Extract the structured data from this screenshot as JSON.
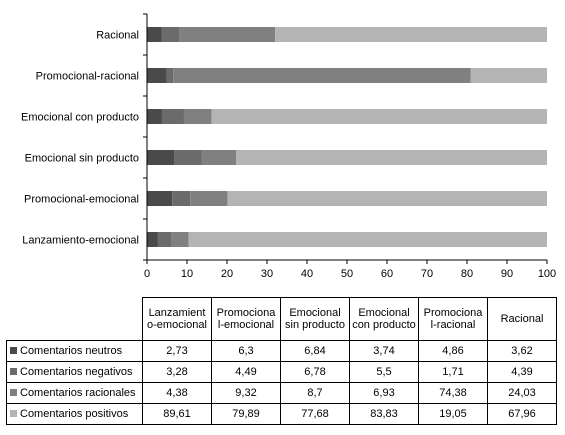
{
  "chart_data": {
    "type": "bar",
    "orientation": "horizontal",
    "stacked": true,
    "title": "",
    "xlabel": "",
    "ylabel": "",
    "xlim": [
      0,
      100
    ],
    "x_ticks": [
      "0",
      "10",
      "20",
      "30",
      "40",
      "50",
      "60",
      "70",
      "80",
      "90",
      "100"
    ],
    "grid": false,
    "legend": "table-below",
    "categories": [
      "Lanzamiento-emocional",
      "Promocional-emocional",
      "Emocional sin producto",
      "Emocional con producto",
      "Promocional-racional",
      "Racional"
    ],
    "table_headers": [
      "Lanzamient o-emocional",
      "Promociona l-emocional",
      "Emocional sin producto",
      "Emocional con producto",
      "Promociona l-racional",
      "Racional"
    ],
    "series": [
      {
        "name": "Comentarios neutros",
        "color": "#4a4a4a",
        "values": [
          2.73,
          6.3,
          6.84,
          3.74,
          4.86,
          3.62
        ],
        "labels": [
          "2,73",
          "6,3",
          "6,84",
          "3,74",
          "4,86",
          "3,62"
        ]
      },
      {
        "name": "Comentarios negativos",
        "color": "#6b6b6b",
        "values": [
          3.28,
          4.49,
          6.78,
          5.5,
          1.71,
          4.39
        ],
        "labels": [
          "3,28",
          "4,49",
          "6,78",
          "5,5",
          "1,71",
          "4,39"
        ]
      },
      {
        "name": "Comentarios racionales",
        "color": "#808080",
        "values": [
          4.38,
          9.32,
          8.7,
          6.93,
          74.38,
          24.03
        ],
        "labels": [
          "4,38",
          "9,32",
          "8,7",
          "6,93",
          "74,38",
          "24,03"
        ]
      },
      {
        "name": "Comentarios positivos",
        "color": "#b4b4b4",
        "values": [
          89.61,
          79.89,
          77.68,
          83.83,
          19.05,
          67.96
        ],
        "labels": [
          "89,61",
          "79,89",
          "77,68",
          "83,83",
          "19,05",
          "67,96"
        ]
      }
    ]
  }
}
